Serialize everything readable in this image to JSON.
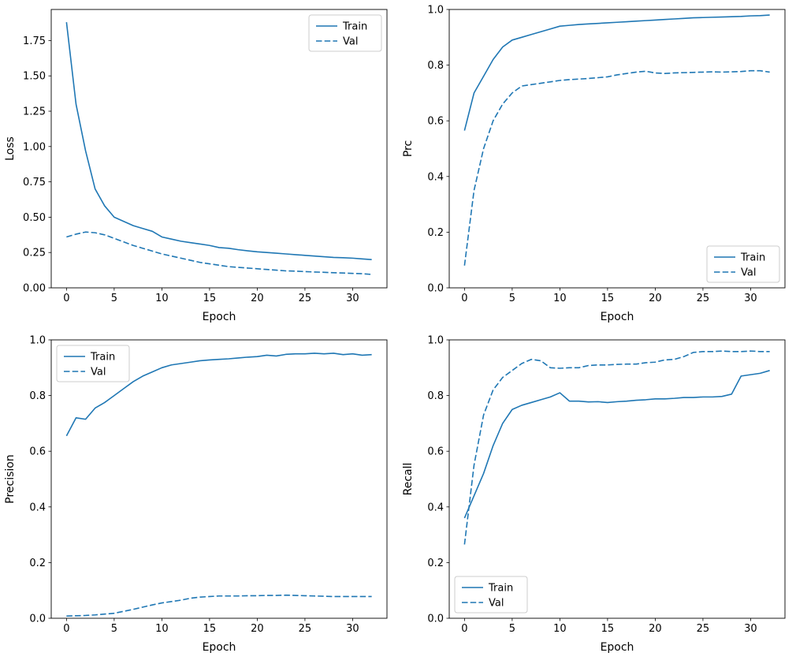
{
  "figure": {
    "background": "#ffffff",
    "line_color": "#1f77b4",
    "legend_edge_color": "#cccccc",
    "text_color": "#000000",
    "legend_labels": [
      "Train",
      "Val"
    ]
  },
  "chart_data": [
    {
      "id": "loss",
      "type": "line",
      "title": "",
      "xlabel": "Epoch",
      "ylabel": "Loss",
      "xlim": [
        -1.6,
        33.6
      ],
      "ylim": [
        0,
        1.97
      ],
      "grid": false,
      "legend_position": "upper-right",
      "xticks": {
        "values": [
          0,
          5,
          10,
          15,
          20,
          25,
          30
        ],
        "labels": [
          "0",
          "5",
          "10",
          "15",
          "20",
          "25",
          "30"
        ]
      },
      "yticks": {
        "values": [
          0,
          0.25,
          0.5,
          0.75,
          1.0,
          1.25,
          1.5,
          1.75
        ],
        "labels": [
          "0.00",
          "0.25",
          "0.50",
          "0.75",
          "1.00",
          "1.25",
          "1.50",
          "1.75"
        ]
      },
      "epochs": [
        0,
        1,
        2,
        3,
        4,
        5,
        6,
        7,
        8,
        9,
        10,
        11,
        12,
        13,
        14,
        15,
        16,
        17,
        18,
        19,
        20,
        21,
        22,
        23,
        24,
        25,
        26,
        27,
        28,
        29,
        30,
        31,
        32
      ],
      "series": [
        {
          "name": "Train",
          "style": "solid",
          "y": [
            1.88,
            1.3,
            0.97,
            0.7,
            0.58,
            0.5,
            0.47,
            0.44,
            0.42,
            0.4,
            0.36,
            0.345,
            0.33,
            0.32,
            0.31,
            0.3,
            0.285,
            0.28,
            0.27,
            0.262,
            0.255,
            0.25,
            0.245,
            0.24,
            0.235,
            0.23,
            0.225,
            0.22,
            0.215,
            0.213,
            0.21,
            0.205,
            0.2
          ]
        },
        {
          "name": "Val",
          "style": "dashed",
          "y": [
            0.36,
            0.38,
            0.395,
            0.39,
            0.375,
            0.35,
            0.325,
            0.3,
            0.28,
            0.26,
            0.24,
            0.225,
            0.21,
            0.195,
            0.18,
            0.17,
            0.16,
            0.15,
            0.145,
            0.14,
            0.135,
            0.13,
            0.125,
            0.12,
            0.118,
            0.115,
            0.112,
            0.11,
            0.107,
            0.105,
            0.102,
            0.1,
            0.095
          ]
        }
      ]
    },
    {
      "id": "prc",
      "type": "line",
      "title": "",
      "xlabel": "Epoch",
      "ylabel": "Prc",
      "xlim": [
        -1.6,
        33.6
      ],
      "ylim": [
        0,
        1.0
      ],
      "grid": false,
      "legend_position": "lower-right",
      "xticks": {
        "values": [
          0,
          5,
          10,
          15,
          20,
          25,
          30
        ],
        "labels": [
          "0",
          "5",
          "10",
          "15",
          "20",
          "25",
          "30"
        ]
      },
      "yticks": {
        "values": [
          0,
          0.2,
          0.4,
          0.6,
          0.8,
          1.0
        ],
        "labels": [
          "0.0",
          "0.2",
          "0.4",
          "0.6",
          "0.8",
          "1.0"
        ]
      },
      "epochs": [
        0,
        1,
        2,
        3,
        4,
        5,
        6,
        7,
        8,
        9,
        10,
        11,
        12,
        13,
        14,
        15,
        16,
        17,
        18,
        19,
        20,
        21,
        22,
        23,
        24,
        25,
        26,
        27,
        28,
        29,
        30,
        31,
        32
      ],
      "series": [
        {
          "name": "Train",
          "style": "solid",
          "y": [
            0.565,
            0.7,
            0.76,
            0.82,
            0.865,
            0.89,
            0.9,
            0.91,
            0.92,
            0.93,
            0.94,
            0.943,
            0.946,
            0.948,
            0.95,
            0.952,
            0.954,
            0.956,
            0.958,
            0.96,
            0.962,
            0.964,
            0.966,
            0.968,
            0.97,
            0.971,
            0.972,
            0.973,
            0.974,
            0.975,
            0.977,
            0.978,
            0.98
          ]
        },
        {
          "name": "Val",
          "style": "dashed",
          "y": [
            0.08,
            0.35,
            0.5,
            0.6,
            0.66,
            0.7,
            0.725,
            0.73,
            0.735,
            0.74,
            0.745,
            0.748,
            0.75,
            0.752,
            0.755,
            0.758,
            0.765,
            0.77,
            0.775,
            0.778,
            0.772,
            0.77,
            0.772,
            0.773,
            0.774,
            0.775,
            0.776,
            0.775,
            0.776,
            0.777,
            0.78,
            0.78,
            0.775
          ]
        }
      ]
    },
    {
      "id": "precision",
      "type": "line",
      "title": "",
      "xlabel": "Epoch",
      "ylabel": "Precision",
      "xlim": [
        -1.6,
        33.6
      ],
      "ylim": [
        0,
        1.0
      ],
      "grid": false,
      "legend_position": "upper-left",
      "xticks": {
        "values": [
          0,
          5,
          10,
          15,
          20,
          25,
          30
        ],
        "labels": [
          "0",
          "5",
          "10",
          "15",
          "20",
          "25",
          "30"
        ]
      },
      "yticks": {
        "values": [
          0,
          0.2,
          0.4,
          0.6,
          0.8,
          1.0
        ],
        "labels": [
          "0.0",
          "0.2",
          "0.4",
          "0.6",
          "0.8",
          "1.0"
        ]
      },
      "epochs": [
        0,
        1,
        2,
        3,
        4,
        5,
        6,
        7,
        8,
        9,
        10,
        11,
        12,
        13,
        14,
        15,
        16,
        17,
        18,
        19,
        20,
        21,
        22,
        23,
        24,
        25,
        26,
        27,
        28,
        29,
        30,
        31,
        32
      ],
      "series": [
        {
          "name": "Train",
          "style": "solid",
          "y": [
            0.655,
            0.72,
            0.715,
            0.755,
            0.775,
            0.8,
            0.825,
            0.85,
            0.87,
            0.885,
            0.9,
            0.91,
            0.915,
            0.92,
            0.925,
            0.928,
            0.93,
            0.932,
            0.935,
            0.938,
            0.94,
            0.945,
            0.942,
            0.948,
            0.95,
            0.95,
            0.952,
            0.95,
            0.952,
            0.947,
            0.95,
            0.945,
            0.947
          ]
        },
        {
          "name": "Val",
          "style": "dashed",
          "y": [
            0.008,
            0.009,
            0.01,
            0.012,
            0.015,
            0.018,
            0.025,
            0.032,
            0.04,
            0.048,
            0.055,
            0.06,
            0.065,
            0.072,
            0.076,
            0.078,
            0.08,
            0.08,
            0.08,
            0.081,
            0.081,
            0.082,
            0.082,
            0.083,
            0.082,
            0.081,
            0.08,
            0.079,
            0.078,
            0.078,
            0.078,
            0.078,
            0.078
          ]
        }
      ]
    },
    {
      "id": "recall",
      "type": "line",
      "title": "",
      "xlabel": "Epoch",
      "ylabel": "Recall",
      "xlim": [
        -1.6,
        33.6
      ],
      "ylim": [
        0,
        1.0
      ],
      "grid": false,
      "legend_position": "lower-left",
      "xticks": {
        "values": [
          0,
          5,
          10,
          15,
          20,
          25,
          30
        ],
        "labels": [
          "0",
          "5",
          "10",
          "15",
          "20",
          "25",
          "30"
        ]
      },
      "yticks": {
        "values": [
          0,
          0.2,
          0.4,
          0.6,
          0.8,
          1.0
        ],
        "labels": [
          "0.0",
          "0.2",
          "0.4",
          "0.6",
          "0.8",
          "1.0"
        ]
      },
      "epochs": [
        0,
        1,
        2,
        3,
        4,
        5,
        6,
        7,
        8,
        9,
        10,
        11,
        12,
        13,
        14,
        15,
        16,
        17,
        18,
        19,
        20,
        21,
        22,
        23,
        24,
        25,
        26,
        27,
        28,
        29,
        30,
        31,
        32
      ],
      "series": [
        {
          "name": "Train",
          "style": "solid",
          "y": [
            0.36,
            0.44,
            0.52,
            0.62,
            0.7,
            0.75,
            0.765,
            0.775,
            0.785,
            0.795,
            0.81,
            0.78,
            0.78,
            0.777,
            0.778,
            0.775,
            0.778,
            0.78,
            0.783,
            0.785,
            0.788,
            0.788,
            0.79,
            0.793,
            0.793,
            0.795,
            0.795,
            0.797,
            0.805,
            0.87,
            0.875,
            0.88,
            0.89
          ]
        },
        {
          "name": "Val",
          "style": "dashed",
          "y": [
            0.265,
            0.55,
            0.73,
            0.82,
            0.865,
            0.89,
            0.915,
            0.93,
            0.925,
            0.9,
            0.898,
            0.9,
            0.9,
            0.908,
            0.91,
            0.91,
            0.912,
            0.913,
            0.913,
            0.918,
            0.92,
            0.928,
            0.93,
            0.94,
            0.955,
            0.958,
            0.958,
            0.96,
            0.958,
            0.958,
            0.96,
            0.958,
            0.958
          ]
        }
      ]
    }
  ]
}
